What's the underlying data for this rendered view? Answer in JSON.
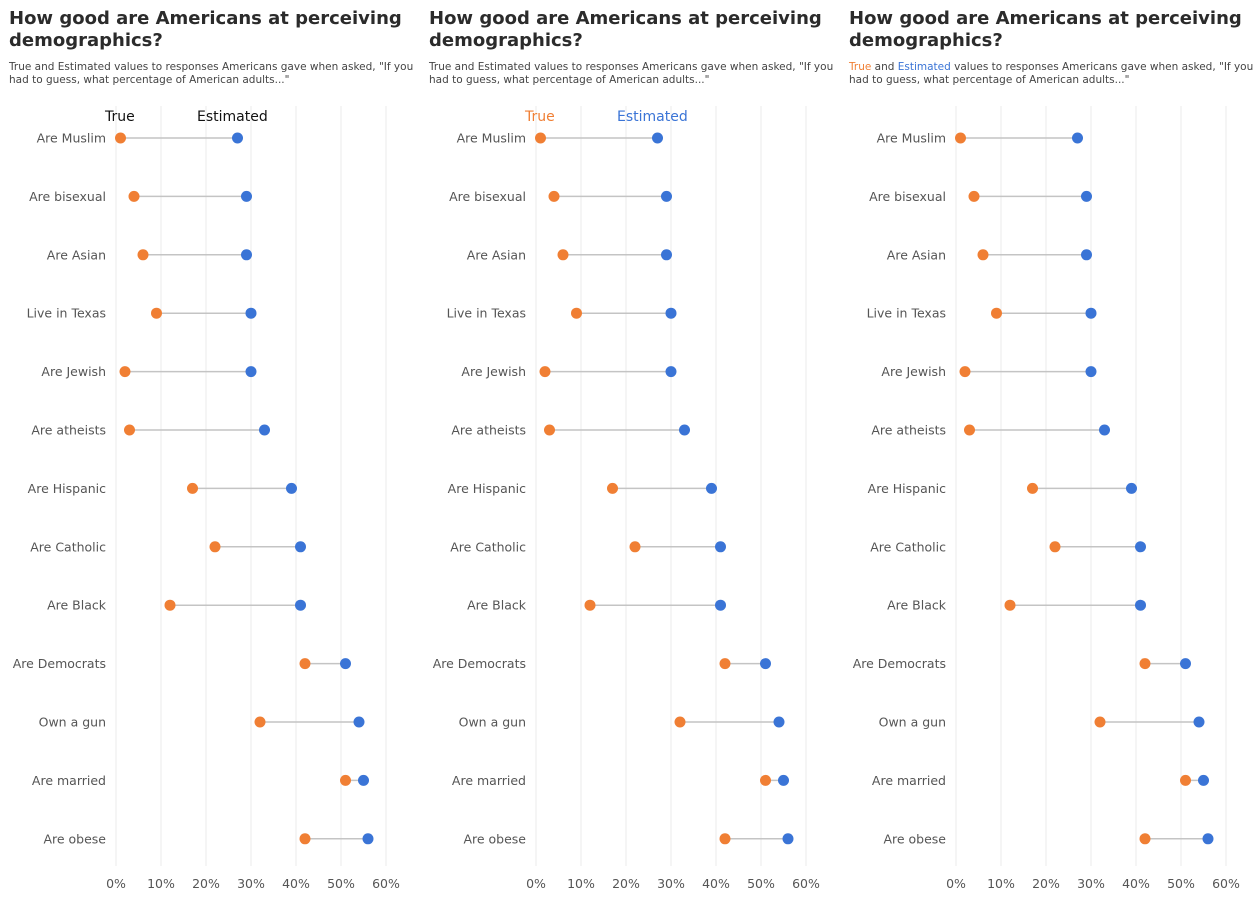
{
  "colors": {
    "true": "#f07f34",
    "estimated": "#3a74d6",
    "connector": "#c4c4c4",
    "grid": "#ebebeb",
    "legend_plain": "#111111"
  },
  "panels": [
    {
      "title": "How good are Americans at perceiving demographics?",
      "subtitle": {
        "pre": "",
        "true_word": "",
        "mid": "",
        "est_word": "",
        "post": "True and Estimated values to responses Americans gave when asked, \"If you had to guess, what percentage of American adults...\""
      },
      "legend": {
        "true_label": "True",
        "est_label": "Estimated",
        "colored": false
      }
    },
    {
      "title": "How good are Americans at perceiving demographics?",
      "subtitle": {
        "pre": "",
        "true_word": "",
        "mid": "",
        "est_word": "",
        "post": "True and Estimated values to responses Americans gave when asked, \"If you had to guess, what percentage of American adults...\""
      },
      "legend": {
        "true_label": "True",
        "est_label": "Estimated",
        "colored": true
      }
    },
    {
      "title": "How good are Americans at perceiving demographics?",
      "subtitle": {
        "pre": "",
        "true_word": "True",
        "mid": " and ",
        "est_word": "Estimated",
        "post": " values to responses Americans gave when asked, \"If you had to guess, what percentage of American adults...\""
      },
      "legend": null
    }
  ],
  "chart_data": {
    "type": "dumbbell",
    "title": "How good are Americans at perceiving demographics?",
    "subtitle": "True and Estimated values to responses Americans gave when asked, \"If you had to guess, what percentage of American adults...\"",
    "categories": [
      "Are Muslim",
      "Are bisexual",
      "Are Asian",
      "Live in Texas",
      "Are Jewish",
      "Are atheists",
      "Are Hispanic",
      "Are Catholic",
      "Are Black",
      "Are Democrats",
      "Own a gun",
      "Are married",
      "Are obese"
    ],
    "series": [
      {
        "name": "True",
        "values": [
          1,
          4,
          6,
          9,
          2,
          3,
          17,
          22,
          12,
          42,
          32,
          51,
          42
        ]
      },
      {
        "name": "Estimated",
        "values": [
          27,
          29,
          29,
          30,
          30,
          33,
          39,
          41,
          41,
          51,
          54,
          55,
          56
        ]
      }
    ],
    "xlim": [
      0,
      60
    ],
    "xticks": [
      "0%",
      "10%",
      "20%",
      "30%",
      "40%",
      "50%",
      "60%"
    ],
    "grid": "vertical",
    "xlabel": "",
    "ylabel": ""
  }
}
